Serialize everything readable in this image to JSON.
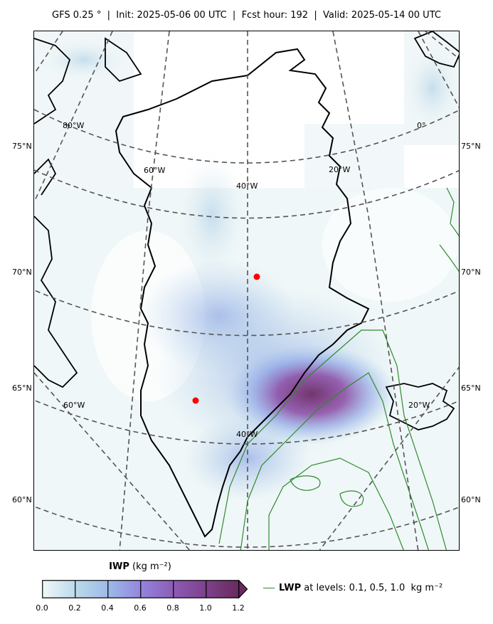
{
  "title": "GFS 0.25$^\\circ$  |  Init: 2025-05-06 00 UTC  |  Fcst hour: 192  |  Valid: 2025-05-14 00 UTC",
  "title_display": "GFS 0.25 °  |  Init: 2025-05-06 00 UTC  |  Fcst hour: 192  |  Valid: 2025-05-14 00 UTC",
  "latitude_labels": [
    "75°N",
    "70°N",
    "65°N",
    "60°N"
  ],
  "longitude_labels_top": [
    "80°W",
    "60°W",
    "40°W",
    "20°W",
    "0°"
  ],
  "longitude_labels_bottom": [
    "60°W",
    "40°W",
    "20°W"
  ],
  "markers": {
    "color": "#ff0000",
    "count": 2
  },
  "colorbar": {
    "label_bold": "IWP",
    "label_units": "(kg m⁻²)",
    "ticks": [
      "0.0",
      "0.2",
      "0.4",
      "0.6",
      "0.8",
      "1.0",
      "1.2"
    ],
    "colors": [
      "#e3f0f2",
      "#a9cde6",
      "#8fa6e6",
      "#9577d6",
      "#8a4aa3",
      "#6e2c66"
    ],
    "extend": "max"
  },
  "legend": {
    "bold": "LWP",
    "text": " at levels: 0.1, 0.5, 1.0  kg m⁻²",
    "color": "#2e8b2e"
  }
}
